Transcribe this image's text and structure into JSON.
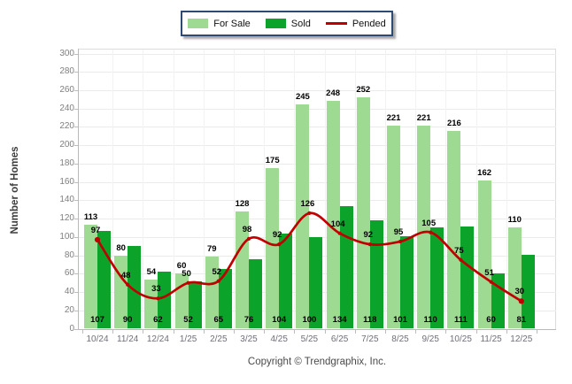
{
  "legend": {
    "items": [
      {
        "label": "For Sale",
        "swatch": "bar",
        "color": "#9fda92"
      },
      {
        "label": "Sold",
        "swatch": "bar",
        "color": "#0ca32b"
      },
      {
        "label": "Pended",
        "swatch": "line",
        "color": "#c00000"
      }
    ]
  },
  "y_axis": {
    "title": "Number of Homes",
    "min": 0,
    "max": 300,
    "step": 20
  },
  "footer": {
    "text": "Copyright © Trendgraphix, Inc."
  },
  "chart_data": {
    "type": "bar",
    "categories": [
      "10/24",
      "11/24",
      "12/24",
      "1/25",
      "2/25",
      "3/25",
      "4/25",
      "5/25",
      "6/25",
      "7/25",
      "8/25",
      "9/25",
      "10/25",
      "11/25",
      "12/25"
    ],
    "series": [
      {
        "name": "For Sale",
        "type": "bar",
        "color": "#9fda92",
        "values": [
          113,
          80,
          54,
          60,
          79,
          128,
          175,
          245,
          248,
          252,
          221,
          221,
          216,
          162,
          110
        ]
      },
      {
        "name": "Sold",
        "type": "bar",
        "color": "#0ca32b",
        "values": [
          107,
          90,
          62,
          52,
          65,
          76,
          104,
          100,
          134,
          118,
          101,
          110,
          111,
          60,
          81
        ]
      },
      {
        "name": "Pended",
        "type": "line",
        "color": "#c00000",
        "values": [
          97,
          48,
          33,
          50,
          52,
          98,
          92,
          126,
          104,
          92,
          95,
          105,
          75,
          51,
          30
        ]
      }
    ],
    "title": "",
    "xlabel": "",
    "ylabel": "Number of Homes",
    "ylim": [
      0,
      300
    ],
    "grid": true,
    "legend_position": "top-center"
  }
}
